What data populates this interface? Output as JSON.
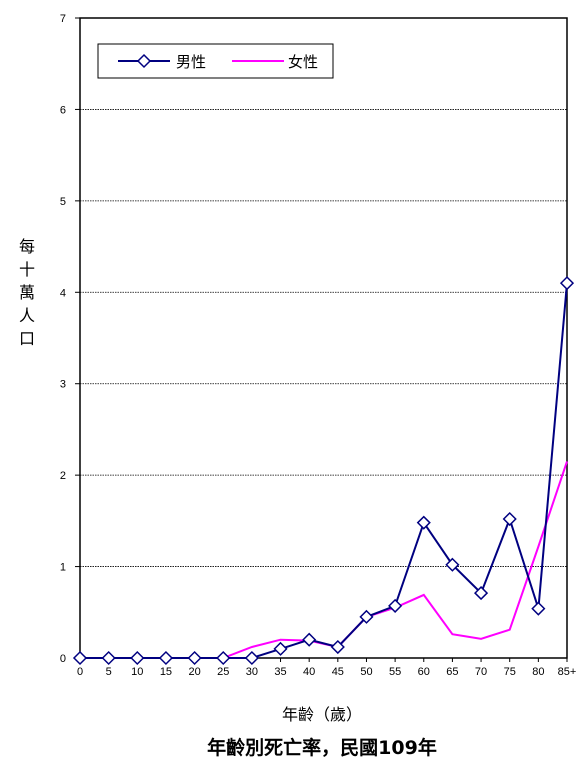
{
  "chart_data": {
    "type": "line",
    "title": "年齡別死亡率，民國109年",
    "xlabel": "年齡（歲）",
    "ylabel": "每十萬人口",
    "categories": [
      "0",
      "5",
      "10",
      "15",
      "20",
      "25",
      "30",
      "35",
      "40",
      "45",
      "50",
      "55",
      "60",
      "65",
      "70",
      "75",
      "80",
      "85+"
    ],
    "ylim": [
      0,
      7
    ],
    "yticks": [
      "0",
      "1",
      "2",
      "3",
      "4",
      "5",
      "6",
      "7"
    ],
    "grid": true,
    "legend_position": "top-left",
    "series": [
      {
        "name": "男性",
        "color": "#000080",
        "marker": "diamond",
        "values": [
          0,
          0,
          0,
          0,
          0,
          0,
          0,
          0.1,
          0.2,
          0.12,
          0.45,
          0.57,
          1.48,
          1.02,
          0.71,
          1.52,
          0.54,
          4.1
        ]
      },
      {
        "name": "女性",
        "color": "#FF00FF",
        "marker": "none",
        "values": [
          0,
          0,
          0,
          0,
          0,
          0,
          0.12,
          0.2,
          0.19,
          0.12,
          0.45,
          0.55,
          0.69,
          0.26,
          0.21,
          0.31,
          1.22,
          2.15
        ]
      }
    ]
  }
}
